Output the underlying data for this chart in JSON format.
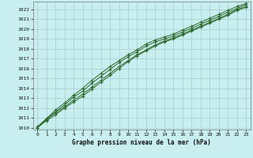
{
  "title": "Graphe pression niveau de la mer (hPa)",
  "background_color": "#c8eef0",
  "grid_color": "#a8cccc",
  "line_color": "#2d6a2d",
  "xlim": [
    -0.5,
    23.5
  ],
  "ylim": [
    1009.8,
    1022.8
  ],
  "xticks": [
    0,
    1,
    2,
    3,
    4,
    5,
    6,
    7,
    8,
    9,
    10,
    11,
    12,
    13,
    14,
    15,
    16,
    17,
    18,
    19,
    20,
    21,
    22,
    23
  ],
  "yticks": [
    1010,
    1011,
    1012,
    1013,
    1014,
    1015,
    1016,
    1017,
    1018,
    1019,
    1020,
    1021,
    1022
  ],
  "series": [
    [
      1010.0,
      1010.8,
      1011.5,
      1012.1,
      1012.8,
      1013.4,
      1014.1,
      1014.8,
      1015.5,
      1016.2,
      1016.8,
      1017.4,
      1017.9,
      1018.4,
      1018.8,
      1019.1,
      1019.5,
      1019.9,
      1020.3,
      1020.7,
      1021.1,
      1021.5,
      1022.0,
      1022.3
    ],
    [
      1010.1,
      1010.9,
      1011.6,
      1012.3,
      1013.1,
      1013.7,
      1014.5,
      1015.2,
      1015.9,
      1016.6,
      1017.2,
      1017.7,
      1018.3,
      1018.7,
      1019.0,
      1019.3,
      1019.7,
      1020.1,
      1020.5,
      1020.9,
      1021.3,
      1021.7,
      1022.1,
      1022.5
    ],
    [
      1010.0,
      1010.7,
      1011.3,
      1012.0,
      1012.6,
      1013.2,
      1013.9,
      1014.6,
      1015.3,
      1016.0,
      1016.7,
      1017.3,
      1017.8,
      1018.3,
      1018.7,
      1019.0,
      1019.4,
      1019.8,
      1020.2,
      1020.6,
      1021.0,
      1021.4,
      1021.9,
      1022.2
    ],
    [
      1010.0,
      1010.9,
      1011.8,
      1012.5,
      1013.3,
      1014.0,
      1014.8,
      1015.5,
      1016.2,
      1016.8,
      1017.4,
      1017.9,
      1018.5,
      1018.9,
      1019.2,
      1019.5,
      1019.9,
      1020.3,
      1020.7,
      1021.1,
      1021.5,
      1021.9,
      1022.3,
      1022.6
    ]
  ]
}
